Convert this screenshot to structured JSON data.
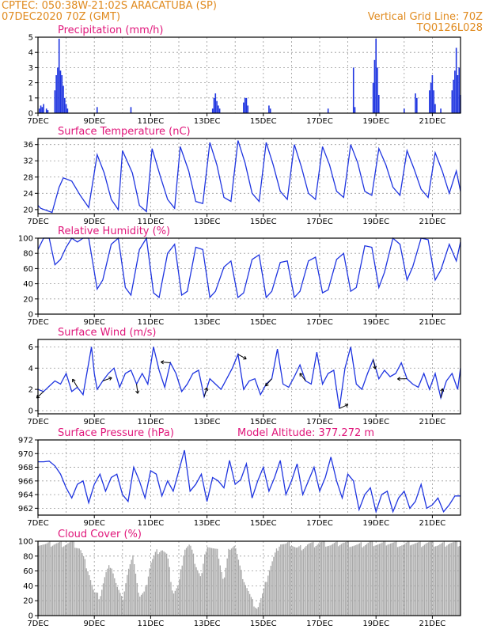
{
  "header": {
    "line1_left": "CPTEC:   050:38W-21:02S   ARACATUBA (SP)",
    "line2_left": "07DEC2020 70Z (GMT)",
    "line1_right": "Vertical Grid Line: 70Z",
    "line2_right": "TQ0126L028"
  },
  "colors": {
    "header": "#e08a1e",
    "title": "#e0167a",
    "series": "#1f35e0",
    "cloud": "#a9a9a9",
    "grid": "#9a9a9a"
  },
  "x_ticks": [
    "7DEC",
    "9DEC",
    "11DEC",
    "13DEC",
    "15DEC",
    "17DEC",
    "19DEC",
    "21DEC"
  ],
  "chart_data": [
    {
      "id": "precip",
      "type": "bar",
      "title": "Precipitation (mm/h)",
      "ylim": [
        0,
        5
      ],
      "yticks": [
        0,
        1,
        2,
        3,
        4,
        5
      ],
      "x_range_days": [
        0,
        15
      ],
      "points": [
        [
          0.05,
          0.3
        ],
        [
          0.1,
          0.5
        ],
        [
          0.15,
          0.4
        ],
        [
          0.2,
          0.6
        ],
        [
          0.3,
          0.3
        ],
        [
          0.35,
          0.2
        ],
        [
          0.6,
          1.5
        ],
        [
          0.65,
          2.5
        ],
        [
          0.7,
          3.0
        ],
        [
          0.75,
          4.9
        ],
        [
          0.8,
          2.8
        ],
        [
          0.85,
          2.5
        ],
        [
          0.9,
          1.8
        ],
        [
          0.95,
          1.0
        ],
        [
          1.0,
          0.6
        ],
        [
          1.05,
          0.3
        ],
        [
          2.1,
          0.4
        ],
        [
          3.3,
          0.4
        ],
        [
          6.2,
          0.3
        ],
        [
          6.25,
          1.0
        ],
        [
          6.3,
          1.3
        ],
        [
          6.35,
          0.8
        ],
        [
          6.4,
          0.5
        ],
        [
          6.45,
          0.3
        ],
        [
          7.3,
          0.7
        ],
        [
          7.35,
          1.0
        ],
        [
          7.4,
          1.0
        ],
        [
          7.45,
          0.5
        ],
        [
          8.2,
          0.5
        ],
        [
          8.25,
          0.3
        ],
        [
          10.3,
          0.3
        ],
        [
          11.2,
          3.0
        ],
        [
          11.25,
          0.4
        ],
        [
          11.9,
          2.0
        ],
        [
          11.95,
          3.5
        ],
        [
          12.0,
          4.9
        ],
        [
          12.05,
          3.0
        ],
        [
          12.1,
          1.2
        ],
        [
          13.0,
          0.3
        ],
        [
          13.4,
          1.3
        ],
        [
          13.45,
          1.0
        ],
        [
          13.9,
          1.5
        ],
        [
          13.95,
          2.0
        ],
        [
          14.0,
          2.5
        ],
        [
          14.05,
          1.5
        ],
        [
          14.1,
          0.6
        ],
        [
          14.3,
          0.3
        ],
        [
          14.7,
          1.5
        ],
        [
          14.75,
          2.2
        ],
        [
          14.8,
          2.8
        ],
        [
          14.85,
          4.3
        ],
        [
          14.9,
          2.5
        ],
        [
          14.95,
          3.0
        ],
        [
          15.0,
          1.2
        ]
      ]
    },
    {
      "id": "temp",
      "type": "line",
      "title": "Surface Temperature (nC)",
      "ylim": [
        19,
        37.5
      ],
      "yticks": [
        20,
        24,
        28,
        32,
        36
      ],
      "x": [
        0,
        0.1,
        0.3,
        0.5,
        0.75,
        0.9,
        1.2,
        1.5,
        1.8,
        2.1,
        2.35,
        2.6,
        2.85,
        3.0,
        3.35,
        3.6,
        3.85,
        4.05,
        4.35,
        4.6,
        4.85,
        5.05,
        5.35,
        5.6,
        5.85,
        6.1,
        6.35,
        6.6,
        6.85,
        7.1,
        7.35,
        7.6,
        7.85,
        8.1,
        8.35,
        8.6,
        8.85,
        9.1,
        9.35,
        9.6,
        9.85,
        10.1,
        10.35,
        10.6,
        10.85,
        11.1,
        11.35,
        11.6,
        11.85,
        12.1,
        12.35,
        12.6,
        12.85,
        13.1,
        13.35,
        13.6,
        13.85,
        14.1,
        14.35,
        14.6,
        14.85,
        15.0
      ],
      "y": [
        21,
        20.3,
        19.8,
        19.3,
        25.5,
        27.8,
        27.0,
        23.5,
        20.5,
        33.5,
        29.0,
        22.5,
        20.0,
        34.5,
        29.0,
        21.0,
        19.5,
        35.0,
        28.0,
        22.5,
        20.3,
        35.5,
        29.5,
        22.0,
        21.5,
        36.5,
        31.0,
        23.0,
        22.0,
        37.0,
        31.5,
        24.0,
        22.0,
        36.5,
        31.0,
        24.5,
        22.5,
        36.0,
        30.5,
        24.0,
        22.5,
        35.5,
        31.0,
        24.5,
        23.0,
        36.0,
        31.5,
        24.5,
        23.5,
        35.0,
        31.0,
        25.5,
        23.5,
        34.5,
        30.0,
        25.0,
        23.0,
        34.0,
        29.5,
        24.0,
        29.5,
        24.5
      ]
    },
    {
      "id": "rh",
      "type": "line",
      "title": "Relative Humidity (%)",
      "ylim": [
        0,
        100
      ],
      "yticks": [
        0,
        20,
        40,
        60,
        80,
        100
      ],
      "x": [
        0,
        0.2,
        0.4,
        0.6,
        0.8,
        1.0,
        1.2,
        1.4,
        1.6,
        1.8,
        2.1,
        2.3,
        2.6,
        2.85,
        3.1,
        3.3,
        3.6,
        3.85,
        4.1,
        4.3,
        4.6,
        4.85,
        5.1,
        5.3,
        5.6,
        5.85,
        6.1,
        6.3,
        6.6,
        6.85,
        7.1,
        7.3,
        7.6,
        7.85,
        8.1,
        8.3,
        8.6,
        8.85,
        9.1,
        9.3,
        9.6,
        9.85,
        10.1,
        10.3,
        10.6,
        10.85,
        11.1,
        11.3,
        11.6,
        11.85,
        12.1,
        12.3,
        12.6,
        12.85,
        13.1,
        13.3,
        13.6,
        13.85,
        14.1,
        14.3,
        14.6,
        14.85,
        15.0
      ],
      "y": [
        85,
        100,
        100,
        65,
        72,
        88,
        100,
        95,
        100,
        100,
        33,
        45,
        92,
        100,
        35,
        25,
        85,
        100,
        28,
        22,
        80,
        92,
        25,
        30,
        88,
        85,
        22,
        30,
        62,
        70,
        22,
        28,
        72,
        78,
        22,
        30,
        68,
        70,
        22,
        30,
        70,
        75,
        28,
        32,
        72,
        80,
        30,
        35,
        90,
        88,
        35,
        55,
        100,
        92,
        45,
        62,
        100,
        98,
        45,
        58,
        92,
        70,
        95
      ]
    },
    {
      "id": "wind",
      "type": "line",
      "title": "Surface Wind (m/s)",
      "ylim": [
        -0.3,
        6.7
      ],
      "yticks": [
        0,
        2,
        4,
        6
      ],
      "x": [
        0,
        0.2,
        0.4,
        0.6,
        0.8,
        1.0,
        1.2,
        1.4,
        1.6,
        1.8,
        1.9,
        2.0,
        2.1,
        2.3,
        2.5,
        2.7,
        2.9,
        3.1,
        3.3,
        3.5,
        3.7,
        3.9,
        4.1,
        4.3,
        4.5,
        4.7,
        4.9,
        5.1,
        5.3,
        5.5,
        5.7,
        5.9,
        6.1,
        6.3,
        6.5,
        6.7,
        6.9,
        7.1,
        7.3,
        7.5,
        7.7,
        7.9,
        8.1,
        8.3,
        8.5,
        8.7,
        8.9,
        9.1,
        9.3,
        9.5,
        9.7,
        9.9,
        10.1,
        10.3,
        10.5,
        10.7,
        10.9,
        11.1,
        11.3,
        11.5,
        11.7,
        11.9,
        12.1,
        12.3,
        12.5,
        12.7,
        12.9,
        13.1,
        13.3,
        13.5,
        13.7,
        13.9,
        14.1,
        14.3,
        14.5,
        14.7,
        14.9,
        15.0
      ],
      "y": [
        2.0,
        1.8,
        2.3,
        2.8,
        2.5,
        3.5,
        1.8,
        2.2,
        1.5,
        4.5,
        6.0,
        3.5,
        2.0,
        2.8,
        3.5,
        4.0,
        2.2,
        3.5,
        3.8,
        2.5,
        3.5,
        2.5,
        6.0,
        3.8,
        2.2,
        4.5,
        3.5,
        1.8,
        2.5,
        3.5,
        3.8,
        1.3,
        3.0,
        2.5,
        2.0,
        3.0,
        4.0,
        5.3,
        2.0,
        2.8,
        3.0,
        1.5,
        2.5,
        3.0,
        5.8,
        2.5,
        2.2,
        3.2,
        4.3,
        2.8,
        2.5,
        5.5,
        2.5,
        3.5,
        3.8,
        0.2,
        4.0,
        6.0,
        2.5,
        2.0,
        3.5,
        4.8,
        3.0,
        3.8,
        3.2,
        3.5,
        4.5,
        3.0,
        2.5,
        2.2,
        3.5,
        2.0,
        3.5,
        1.2,
        2.8,
        3.5,
        2.0,
        4.0
      ]
    },
    {
      "id": "pressure",
      "type": "line",
      "title": "Surface Pressure (hPa)",
      "annotation": "Model Altitude: 377.272 m",
      "ylim": [
        961,
        972
      ],
      "yticks": [
        962,
        964,
        966,
        968,
        970,
        972
      ],
      "x": [
        0,
        0.2,
        0.4,
        0.6,
        0.8,
        1.0,
        1.2,
        1.4,
        1.6,
        1.8,
        2.0,
        2.2,
        2.4,
        2.6,
        2.8,
        3.0,
        3.2,
        3.4,
        3.6,
        3.8,
        4.0,
        4.2,
        4.4,
        4.6,
        4.8,
        5.0,
        5.2,
        5.4,
        5.6,
        5.8,
        6.0,
        6.2,
        6.4,
        6.6,
        6.8,
        7.0,
        7.2,
        7.4,
        7.6,
        7.8,
        8.0,
        8.2,
        8.4,
        8.6,
        8.8,
        9.0,
        9.2,
        9.4,
        9.6,
        9.8,
        10.0,
        10.2,
        10.4,
        10.6,
        10.8,
        11.0,
        11.2,
        11.4,
        11.6,
        11.8,
        12.0,
        12.2,
        12.4,
        12.6,
        12.8,
        13.0,
        13.2,
        13.4,
        13.6,
        13.8,
        14.0,
        14.2,
        14.4,
        14.6,
        14.8,
        15.0
      ],
      "y": [
        968.8,
        968.8,
        968.9,
        968.2,
        967.0,
        965.0,
        963.5,
        965.5,
        966.0,
        962.8,
        965.5,
        967.0,
        964.5,
        966.5,
        967.0,
        964.0,
        963.0,
        968.0,
        966.0,
        963.5,
        967.5,
        967.0,
        963.8,
        966.0,
        964.5,
        967.5,
        970.5,
        964.5,
        965.5,
        967.0,
        963.0,
        966.5,
        966.0,
        965.0,
        969.0,
        965.5,
        966.2,
        968.5,
        963.5,
        966.0,
        968.0,
        964.5,
        966.5,
        969.0,
        964.0,
        966.0,
        968.5,
        964.0,
        966.0,
        968.0,
        964.5,
        966.5,
        969.5,
        966.0,
        963.5,
        967.0,
        966.0,
        961.8,
        964.0,
        965.0,
        961.5,
        964.0,
        964.5,
        961.5,
        963.5,
        964.5,
        962.0,
        963.0,
        965.5,
        962.0,
        962.5,
        963.5,
        961.5,
        962.5,
        963.8,
        963.8
      ]
    },
    {
      "id": "cloud",
      "type": "area",
      "title": "Cloud Cover (%)",
      "ylim": [
        0,
        100
      ],
      "yticks": [
        0,
        20,
        40,
        60,
        80,
        100
      ],
      "x": [
        0,
        0.3,
        0.6,
        0.9,
        1.2,
        1.5,
        1.8,
        2.0,
        2.2,
        2.4,
        2.6,
        2.8,
        3.0,
        3.2,
        3.4,
        3.6,
        3.8,
        4.0,
        4.2,
        4.4,
        4.6,
        4.8,
        5.0,
        5.2,
        5.4,
        5.6,
        5.8,
        6.0,
        6.2,
        6.4,
        6.6,
        6.8,
        7.0,
        7.2,
        7.4,
        7.6,
        7.8,
        8.0,
        8.2,
        8.4,
        8.6,
        8.8,
        9.0,
        9.2,
        9.4,
        9.6,
        9.8,
        10.0,
        10.2,
        10.4,
        10.6,
        10.8,
        11.0,
        11.2,
        11.4,
        11.6,
        11.8,
        12.0,
        12.2,
        12.4,
        12.6,
        12.8,
        13.0,
        13.2,
        13.4,
        13.6,
        13.8,
        14.0,
        14.2,
        14.4,
        14.6,
        14.8,
        15.0
      ],
      "y": [
        98,
        95,
        97,
        96,
        98,
        90,
        60,
        30,
        25,
        55,
        70,
        40,
        20,
        60,
        80,
        25,
        30,
        70,
        85,
        90,
        80,
        30,
        40,
        90,
        95,
        70,
        50,
        96,
        90,
        85,
        45,
        92,
        95,
        60,
        40,
        20,
        10,
        30,
        60,
        80,
        98,
        95,
        97,
        90,
        92,
        96,
        95,
        98,
        97,
        95,
        96,
        98,
        97,
        95,
        94,
        96,
        98,
        97,
        96,
        98,
        97,
        96,
        95,
        98,
        97,
        96,
        98,
        97,
        95,
        96,
        98,
        97,
        96
      ]
    }
  ]
}
